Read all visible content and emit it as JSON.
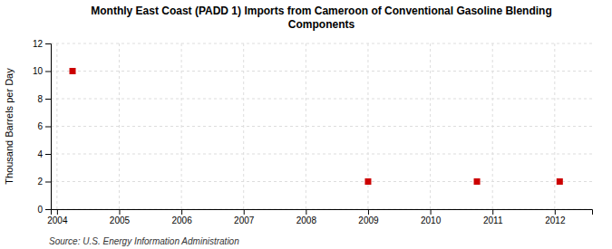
{
  "chart_data": {
    "type": "scatter",
    "title": "Monthly East Coast (PADD 1) Imports from Cameroon of Conventional Gasoline Blending\nComponents",
    "y_label": "Thousand Barrels per Day",
    "source": "Source: U.S. Energy Information Administration",
    "x": [
      2004.25,
      2009.0,
      2010.75,
      2012.08
    ],
    "values": [
      10,
      2,
      2,
      2
    ],
    "color": "#cc0000",
    "marker": "square",
    "xlim": [
      2003.9,
      2012.6
    ],
    "ylim": [
      0,
      12
    ],
    "xticks": [
      2004,
      2005,
      2006,
      2007,
      2008,
      2009,
      2010,
      2011,
      2012
    ],
    "yticks": [
      0,
      2,
      4,
      6,
      8,
      10,
      12
    ],
    "grid": true
  }
}
